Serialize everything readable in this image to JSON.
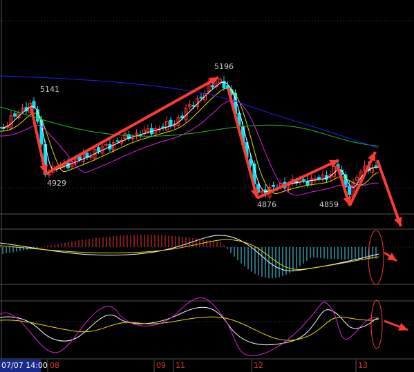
{
  "annotations": [
    "5141",
    "4929",
    "5196",
    "4876",
    "4859"
  ],
  "time_axis": {
    "start": "07/07 14:00",
    "labels": [
      "08",
      "09",
      "11",
      "12",
      "13"
    ]
  }
}
